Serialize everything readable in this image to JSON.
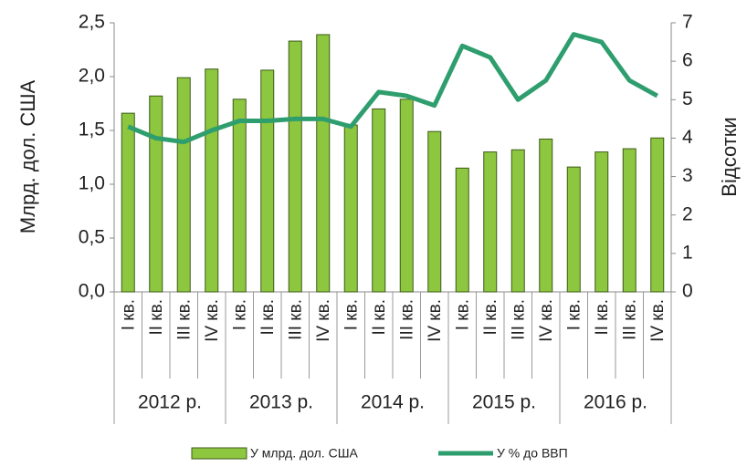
{
  "chart_data": {
    "type": "bar_line",
    "categories": [
      "I кв.",
      "II кв.",
      "III кв.",
      "IV кв.",
      "I кв.",
      "II кв.",
      "III кв.",
      "IV кв.",
      "I кв.",
      "II кв.",
      "III кв.",
      "IV кв.",
      "I кв.",
      "II кв.",
      "III кв.",
      "IV кв.",
      "I кв.",
      "II кв.",
      "III кв.",
      "IV кв."
    ],
    "category_groups": [
      "2012 р.",
      "2013 р.",
      "2014 р.",
      "2015 р.",
      "2016 р."
    ],
    "series": [
      {
        "name": "У млрд. дол. США",
        "type": "bar",
        "color": "#8dc63f",
        "values": [
          1.66,
          1.82,
          1.99,
          2.07,
          1.79,
          2.06,
          2.33,
          2.39,
          1.55,
          1.7,
          1.79,
          1.49,
          1.15,
          1.3,
          1.32,
          1.42,
          1.16,
          1.3,
          1.33,
          1.43
        ]
      },
      {
        "name": "У % до ВВП",
        "type": "line",
        "axis": "y2",
        "color": "#2f9e6e",
        "values": [
          4.3,
          4.0,
          3.9,
          4.2,
          4.45,
          4.45,
          4.5,
          4.5,
          4.3,
          5.2,
          5.1,
          4.85,
          6.4,
          6.1,
          5.0,
          5.5,
          6.7,
          6.5,
          5.5,
          5.1
        ]
      }
    ],
    "ylabel": "Млрд. дол. США",
    "y2label": "Відсотки",
    "ylim": [
      0,
      2.5
    ],
    "yticks": [
      {
        "value": 0,
        "label": "0,0"
      },
      {
        "value": 0.5,
        "label": "0,5"
      },
      {
        "value": 1,
        "label": "1,0"
      },
      {
        "value": 1.5,
        "label": "1,5"
      },
      {
        "value": 2,
        "label": "2,0"
      },
      {
        "value": 2.5,
        "label": "2,5"
      }
    ],
    "y2lim": [
      0,
      7
    ],
    "y2ticks": [
      0,
      1,
      2,
      3,
      4,
      5,
      6,
      7
    ],
    "legend": "bottom"
  }
}
